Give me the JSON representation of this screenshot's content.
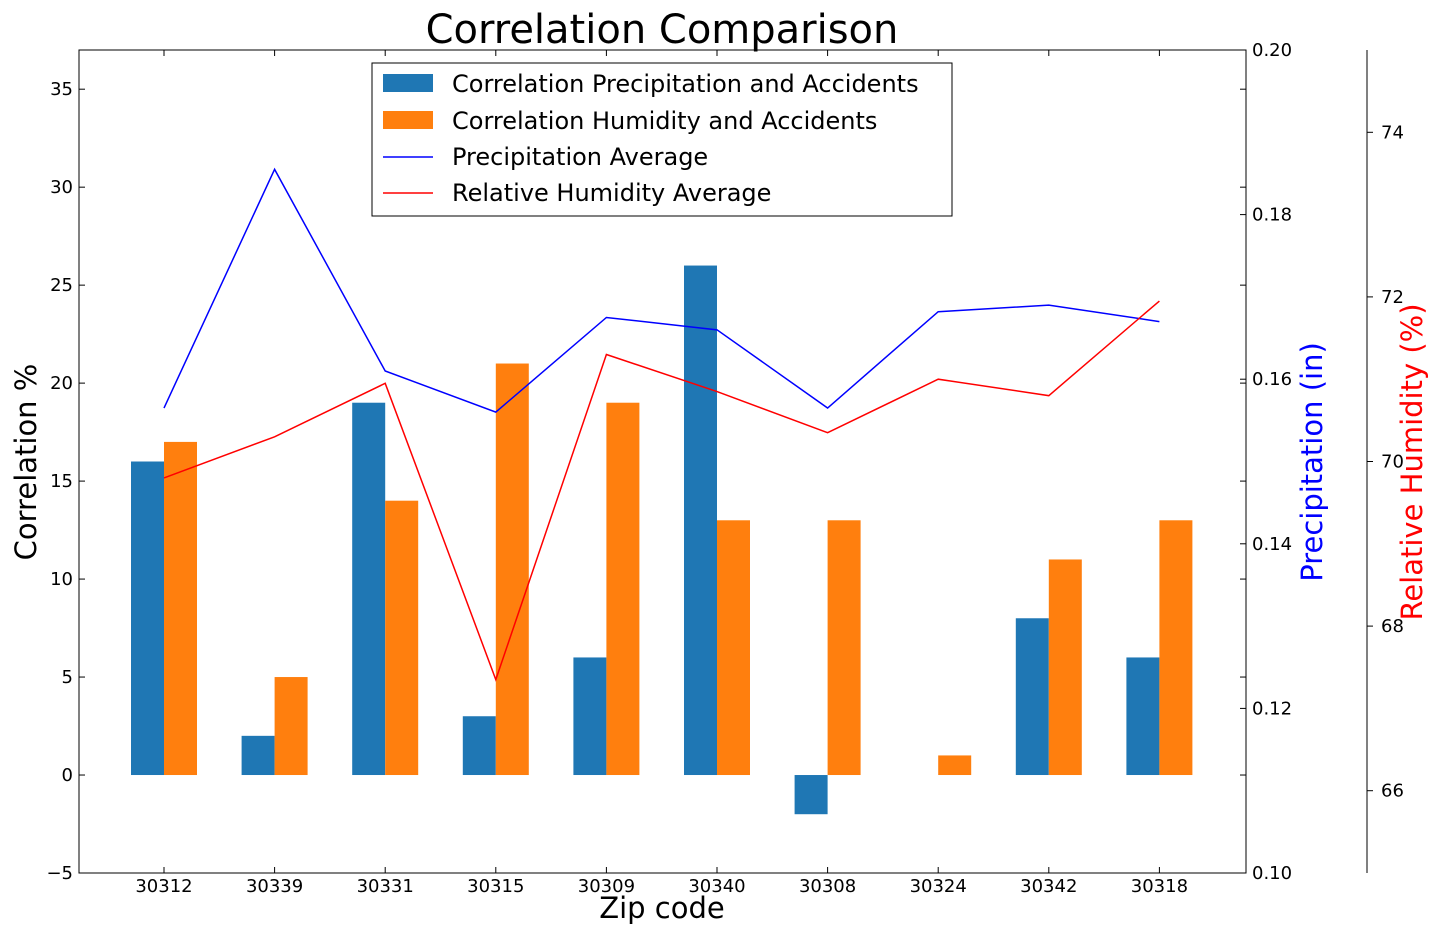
{
  "chart_data": {
    "type": "bar",
    "title": "Correlation Comparison",
    "xlabel": "Zip code",
    "ylabel": "Correlation %",
    "y2label": "Precipitation (in)",
    "y3label": "Relative Humidity (%)",
    "categories": [
      "30312",
      "30339",
      "30331",
      "30315",
      "30309",
      "30340",
      "30308",
      "30324",
      "30342",
      "30318"
    ],
    "ylim": [
      -5,
      37
    ],
    "yticks": [
      "−5",
      "0",
      "5",
      "10",
      "15",
      "20",
      "25",
      "30",
      "35"
    ],
    "y2lim": [
      0.1,
      0.2
    ],
    "y2ticks": [
      "0.10",
      "0.12",
      "0.14",
      "0.16",
      "0.18",
      "0.20"
    ],
    "y3lim": [
      65,
      75
    ],
    "y3ticks": [
      "66",
      "68",
      "70",
      "72",
      "74"
    ],
    "legend_position": "upper-center",
    "colors": {
      "precip_bar": "#1f77b4",
      "humidity_bar": "#ff7f0e",
      "precip_line": "#0000ff",
      "humidity_line": "#ff0000"
    },
    "series": [
      {
        "name": "Correlation Precipitation and Accidents",
        "kind": "bar",
        "axis": "left",
        "values": [
          16,
          2,
          19,
          3,
          6,
          26,
          -2,
          0,
          8,
          6
        ]
      },
      {
        "name": "Correlation Humidity and Accidents",
        "kind": "bar",
        "axis": "left",
        "values": [
          17,
          5,
          14,
          21,
          19,
          13,
          13,
          1,
          11,
          13
        ]
      },
      {
        "name": "Precipitation Average",
        "kind": "line",
        "axis": "right",
        "values": [
          0.1565,
          0.1855,
          0.161,
          0.156,
          0.1675,
          0.166,
          0.1565,
          0.1682,
          0.169,
          0.167
        ]
      },
      {
        "name": "Relative Humidity Average",
        "kind": "line",
        "axis": "far-right",
        "values": [
          69.8,
          70.3,
          70.95,
          67.35,
          71.3,
          70.85,
          70.35,
          71.0,
          70.8,
          71.95
        ]
      }
    ]
  }
}
